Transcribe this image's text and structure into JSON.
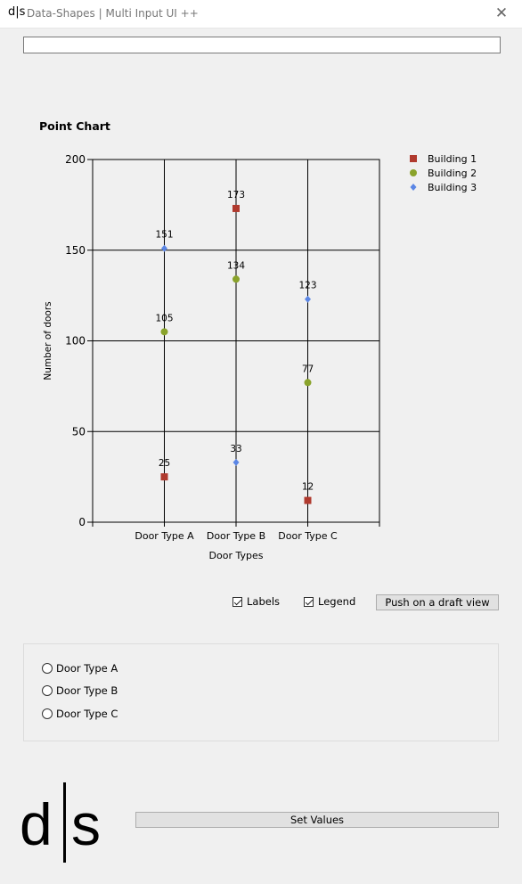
{
  "window": {
    "logo": "d|s",
    "title": "Data-Shapes | Multi Input UI ++",
    "close_glyph": "✕"
  },
  "top_input": {
    "value": ""
  },
  "chart_data": {
    "type": "scatter",
    "title": "Point Chart",
    "xlabel": "Door Types",
    "ylabel": "Number of doors",
    "categories": [
      "Door Type A",
      "Door Type B",
      "Door Type C"
    ],
    "ylim": [
      0,
      200
    ],
    "yticks": [
      0,
      50,
      100,
      150,
      200
    ],
    "grid": true,
    "legend_position": "top-right",
    "series": [
      {
        "name": "Building 1",
        "marker": "square",
        "color": "#b03a2e",
        "values": [
          25,
          173,
          12
        ]
      },
      {
        "name": "Building 2",
        "marker": "circle",
        "color": "#8aa32b",
        "values": [
          105,
          134,
          77
        ]
      },
      {
        "name": "Building 3",
        "marker": "diamond",
        "color": "#5b86e5",
        "values": [
          151,
          33,
          123
        ]
      }
    ]
  },
  "controls": {
    "labels_checkbox": {
      "label": "Labels",
      "checked": true
    },
    "legend_checkbox": {
      "label": "Legend",
      "checked": true
    },
    "push_button_label": "Push on a draft view"
  },
  "radio_group": {
    "options": [
      "Door Type A",
      "Door Type B",
      "Door Type C"
    ],
    "selected": null
  },
  "footer": {
    "logo": "d|s",
    "set_values_label": "Set Values"
  }
}
